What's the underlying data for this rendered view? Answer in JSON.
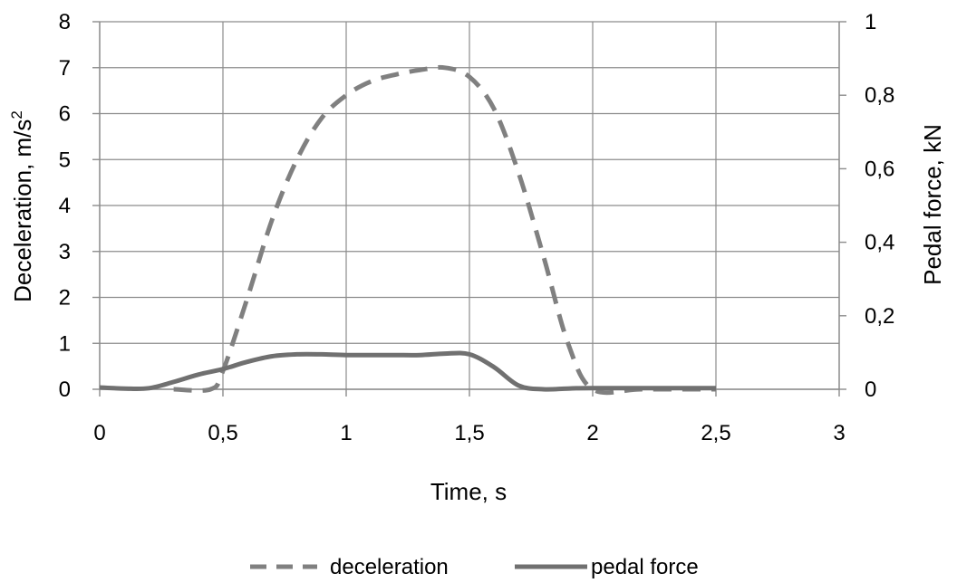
{
  "chart_data": {
    "type": "line",
    "xlabel": "Time, s",
    "ylabel": "Deceleration,  m/s",
    "ylabel_superscript": "2",
    "y2label": "Pedal force, kN",
    "xlim": [
      0,
      3
    ],
    "ylim": [
      0,
      8
    ],
    "y2lim": [
      0,
      1
    ],
    "x_ticks": [
      "0",
      "0,5",
      "1",
      "1,5",
      "2",
      "2,5",
      "3"
    ],
    "y_ticks": [
      "0",
      "1",
      "2",
      "3",
      "4",
      "5",
      "6",
      "7",
      "8"
    ],
    "y2_ticks": [
      "0",
      "0,2",
      "0,4",
      "0,6",
      "0,8",
      "1"
    ],
    "grid": true,
    "legend_position": "bottom",
    "series": [
      {
        "name": "deceleration",
        "axis": "left",
        "style": "dashed",
        "color": "#808080",
        "x": [
          0.3,
          0.45,
          0.5,
          0.6,
          0.7,
          0.8,
          0.9,
          1.0,
          1.1,
          1.2,
          1.3,
          1.4,
          1.5,
          1.6,
          1.7,
          1.8,
          1.9,
          2.0,
          2.2,
          2.5
        ],
        "y": [
          0,
          0,
          0.4,
          2.0,
          3.7,
          5.0,
          5.9,
          6.4,
          6.7,
          6.85,
          6.95,
          7.0,
          6.8,
          6.1,
          4.7,
          2.9,
          1.0,
          0,
          0,
          0
        ]
      },
      {
        "name": "pedal force",
        "axis": "right",
        "style": "solid",
        "color": "#707070",
        "x": [
          0,
          0.1,
          0.2,
          0.3,
          0.4,
          0.5,
          0.6,
          0.7,
          0.8,
          0.9,
          1.0,
          1.1,
          1.2,
          1.3,
          1.4,
          1.5,
          1.6,
          1.7,
          1.8,
          1.9,
          2.0,
          2.5
        ],
        "y": [
          0.005,
          0.002,
          0.003,
          0.02,
          0.04,
          0.055,
          0.075,
          0.09,
          0.095,
          0.095,
          0.093,
          0.093,
          0.093,
          0.093,
          0.097,
          0.095,
          0.06,
          0.01,
          0.0,
          0.002,
          0.003,
          0.003
        ]
      }
    ],
    "colors": {
      "grid": "#8c8c8c",
      "axis": "#8c8c8c",
      "text": "#000000"
    }
  }
}
